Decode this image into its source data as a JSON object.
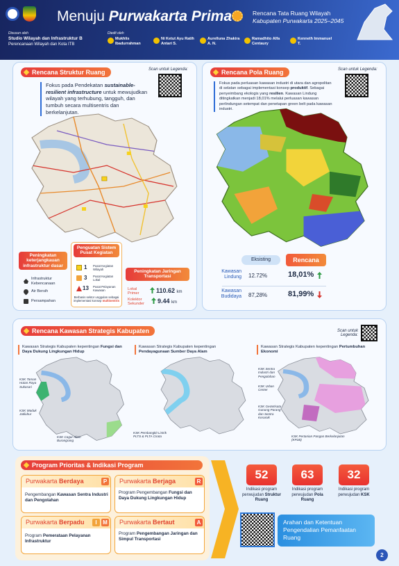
{
  "header": {
    "title_lead": "Menuju",
    "title_emph": "Purwakarta Prima",
    "plan_name": "Rencana Tata Ruang Wilayah",
    "plan_area": "Kabupaten Purwakarta 2025–2045",
    "compiled_label": "Disusun oleh",
    "compiler": "Studio Wilayah dan Infrastruktur B",
    "compiler_program": "Perencanaan Wilayah dan Kota ITB",
    "editors_label": "Diedit oleh",
    "editors": [
      "Mukhlis Ibadurrahman",
      "Ni Ketut Ayu Ratih Antari S.",
      "Aurelluna Zhakira A. N.",
      "Ramadhito Alfa Centaury",
      "Kenneth Immanuel T."
    ]
  },
  "structure": {
    "title": "Rencana Struktur Ruang",
    "scan_label": "Scan untuk Legenda:",
    "intro": [
      "Fokus pada Pendekatan",
      "sustainable-resilient infrastructure",
      "untuk mewujudkan wilayah yang terhubung, tangguh, dan tumbuh secara multisentris dan berkelanjutan."
    ],
    "infrastructure": {
      "title": "Peningkatan keterjangkauan infrastruktur dasar",
      "items": [
        "Infrastruktur Kebencanaan",
        "Air Bersih",
        "Persampahan"
      ]
    },
    "centers": {
      "title": "Penguatan Sistem Pusat Kegiatan",
      "items": [
        {
          "count": 1,
          "label": "Pusat Kegiatan Wilayah"
        },
        {
          "count": 3,
          "label": "Pusat Kegiatan Lokal"
        },
        {
          "count": 13,
          "label": "Pusat Pelayanan Kawasan"
        }
      ],
      "note": [
        "Berbasis sektor unggulan sebagai implementasi konsep",
        "multisentris"
      ]
    },
    "transport": {
      "title": "Peningkatan Jaringan Transportasi",
      "roads": [
        {
          "label": "Lokal Primer",
          "length": 110.62,
          "unit": "km"
        },
        {
          "label": "Kolektor Sekunder",
          "length": 9.44,
          "unit": "km"
        }
      ]
    }
  },
  "land_use": {
    "title": "Rencana Pola Ruang",
    "scan_label": "Scan untuk Legenda:",
    "intro": [
      "Fokus pada perluasan kawasan industri di utara dan agropolitan di selatan sebagai implementasi konsep",
      "produktif",
      ". Sebagai penyeimbang ekologis yang",
      "resilien",
      ". Kawasan Lindung ditingkatkan menjadi 18,01% melalui perluasan kawasan perlindungan setempat dan penetapan green belt pada kawasan industri."
    ],
    "table": {
      "columns": [
        "Eksisting",
        "Rencana"
      ],
      "rows": [
        [
          "Kawasan Lindung",
          "12.72%",
          "18,01%"
        ],
        [
          "Kawasan Budidaya",
          "87,28%",
          "81,99%"
        ]
      ]
    }
  },
  "strategic": {
    "title": "Rencana Kawasan Strategis Kabupaten",
    "scan_label": "Scan untuk Legenda:",
    "panels": [
      {
        "heading": [
          "Kawasan Strategis Kabupaten kepentingan",
          "Fungsi dan Daya Dukung Lingkungan Hidup"
        ],
        "sites": [
          "KSK Taman Hutan Raya Sukasari",
          "KSK Waduk Jatiluhur",
          "KSK Cagar Alam Burangrang"
        ]
      },
      {
        "heading": [
          "Kawasan Strategis Kabupaten kepentingan",
          "Pendayagunaan Sumber Daya Alam"
        ],
        "sites": [
          "KSK Pembangkit Listrik PLTS & PLTA Cirata"
        ]
      },
      {
        "heading": [
          "Kawasan Strategis Kabupaten kepentingan",
          "Pertumbuhan Ekonomi"
        ],
        "sites": [
          "KSK Sentra Industri dan Pengolahan",
          "KSK Urban Center",
          "KSK GeoWisata Gunung Parang dan Sentra Keramik",
          "KSK Pertanian Pangan Berkelanjutan (KP2B)"
        ]
      }
    ]
  },
  "program": {
    "title": "Program Prioritas & Indikasi Program",
    "pillars": [
      {
        "name": [
          "Purwakarta",
          "Berdaya"
        ],
        "letters": [
          "P"
        ],
        "text": [
          "Pengembangan",
          "Kawasan Sentra Industri dan Pengolahan"
        ]
      },
      {
        "name": [
          "Purwakarta",
          "Berjaga"
        ],
        "letters": [
          "R"
        ],
        "text": [
          "Program Pengembangan",
          "Fungsi dan Daya Dukung Lingkungan Hidup"
        ]
      },
      {
        "name": [
          "Purwakarta",
          "Berpadu"
        ],
        "letters": [
          "I",
          "M"
        ],
        "text": [
          "Program",
          "Pemerataan Pelayanan Infrastruktur"
        ]
      },
      {
        "name": [
          "Purwakarta",
          "Bertaut"
        ],
        "letters": [
          "A"
        ],
        "text": [
          "Program",
          "Pengembangan Jaringan dan Simpul Transportasi"
        ]
      }
    ],
    "indications": [
      {
        "count": 52,
        "label": "Indikasi program perwujudan",
        "focus": "Struktur Ruang"
      },
      {
        "count": 63,
        "label": "Indikasi program perwujudan",
        "focus": "Pola Ruang"
      },
      {
        "count": 32,
        "label": "Indikasi program perwujudan",
        "focus": "KSK"
      }
    ],
    "control": "Arahan dan Ketentuan Pengendalian Pemanfaatan Ruang"
  },
  "page_number": 2
}
